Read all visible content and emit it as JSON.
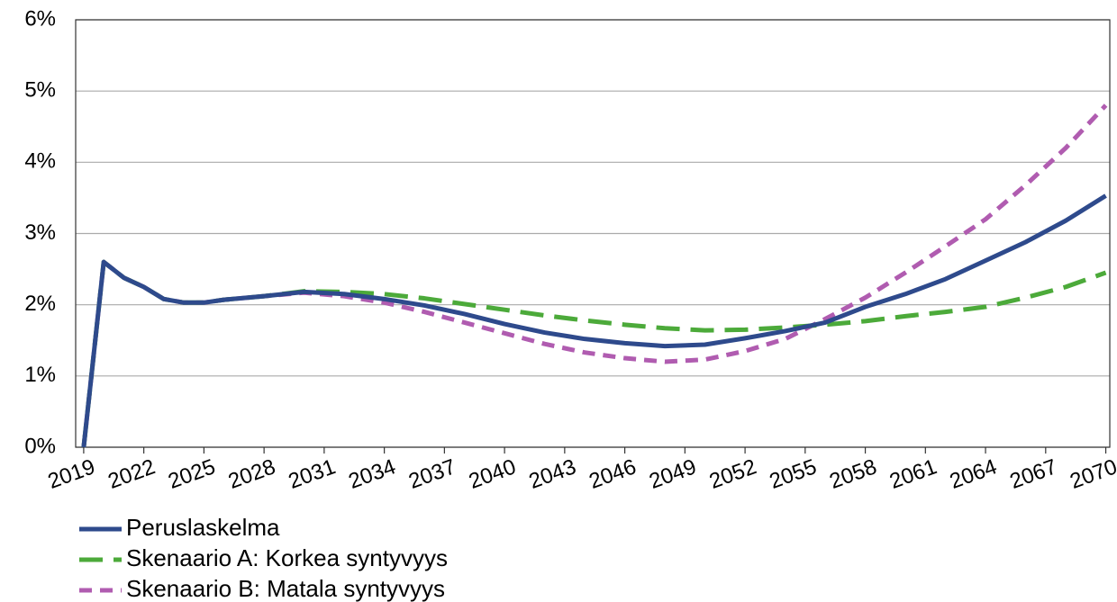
{
  "chart_data": {
    "type": "line",
    "x": [
      2019,
      2020,
      2021,
      2022,
      2023,
      2024,
      2025,
      2026,
      2028,
      2030,
      2032,
      2034,
      2036,
      2038,
      2040,
      2042,
      2044,
      2046,
      2048,
      2050,
      2052,
      2054,
      2056,
      2058,
      2060,
      2062,
      2064,
      2066,
      2068,
      2070
    ],
    "series": [
      {
        "name": "Peruslaskelma",
        "color": "#2e4a8c",
        "dash": "solid",
        "values": [
          0,
          2.6,
          2.38,
          2.25,
          2.08,
          2.03,
          2.03,
          2.07,
          2.12,
          2.18,
          2.15,
          2.08,
          1.99,
          1.87,
          1.73,
          1.61,
          1.52,
          1.46,
          1.42,
          1.44,
          1.53,
          1.63,
          1.75,
          1.97,
          2.15,
          2.36,
          2.62,
          2.88,
          3.18,
          3.53
        ]
      },
      {
        "name": "Skenaario A: Korkea syntyvyys",
        "color": "#4caa3a",
        "dash": "long",
        "values": [
          0,
          2.6,
          2.38,
          2.25,
          2.08,
          2.03,
          2.03,
          2.07,
          2.12,
          2.19,
          2.18,
          2.15,
          2.09,
          2.01,
          1.93,
          1.85,
          1.78,
          1.72,
          1.67,
          1.64,
          1.65,
          1.68,
          1.72,
          1.77,
          1.84,
          1.9,
          1.97,
          2.1,
          2.25,
          2.45
        ]
      },
      {
        "name": "Skenaario B: Matala syntyvyys",
        "color": "#b05cb0",
        "dash": "short",
        "values": [
          0,
          2.6,
          2.38,
          2.25,
          2.08,
          2.03,
          2.03,
          2.07,
          2.12,
          2.17,
          2.12,
          2.03,
          1.9,
          1.75,
          1.6,
          1.45,
          1.33,
          1.25,
          1.2,
          1.23,
          1.35,
          1.52,
          1.8,
          2.1,
          2.45,
          2.82,
          3.2,
          3.68,
          4.2,
          4.8
        ]
      }
    ],
    "xlim": [
      2018.6,
      2070.2
    ],
    "xticks": [
      2019,
      2022,
      2025,
      2028,
      2031,
      2034,
      2037,
      2040,
      2043,
      2046,
      2049,
      2052,
      2055,
      2058,
      2061,
      2064,
      2067,
      2070
    ],
    "ylim": [
      0,
      6
    ],
    "yticks": [
      {
        "value": 0,
        "label": "0%"
      },
      {
        "value": 1,
        "label": "1%"
      },
      {
        "value": 2,
        "label": "2%"
      },
      {
        "value": 3,
        "label": "3%"
      },
      {
        "value": 4,
        "label": "4%"
      },
      {
        "value": 5,
        "label": "5%"
      },
      {
        "value": 6,
        "label": "6%"
      }
    ],
    "grid": true,
    "legend": "bottom-left"
  }
}
